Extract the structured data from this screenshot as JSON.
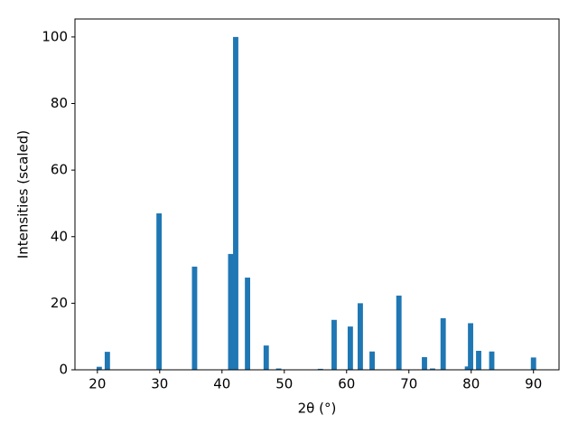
{
  "chart_data": {
    "type": "bar",
    "x_label": "2θ (°)",
    "y_label": "Intensities (scaled)",
    "x": [
      20.3,
      21.6,
      29.9,
      35.6,
      41.4,
      42.2,
      44.1,
      47.1,
      49.1,
      55.8,
      58.0,
      60.6,
      62.2,
      64.1,
      68.4,
      72.5,
      73.8,
      75.5,
      79.4,
      79.9,
      81.2,
      83.3,
      90.0
    ],
    "values": [
      0.9,
      5.4,
      47,
      31,
      34.8,
      100,
      27.7,
      7.3,
      0.4,
      0.3,
      15,
      13,
      20,
      5.5,
      22.3,
      3.8,
      0.4,
      15.5,
      1,
      14,
      5.7,
      5.5,
      3.7
    ],
    "color": "#1f77b4",
    "xlim": [
      16.4,
      94.1
    ],
    "xticks": [
      20,
      30,
      40,
      50,
      60,
      70,
      80,
      90
    ],
    "ylim": [
      0,
      105.4
    ],
    "yticks": [
      0,
      20,
      40,
      60,
      80,
      100
    ],
    "grid": false
  }
}
